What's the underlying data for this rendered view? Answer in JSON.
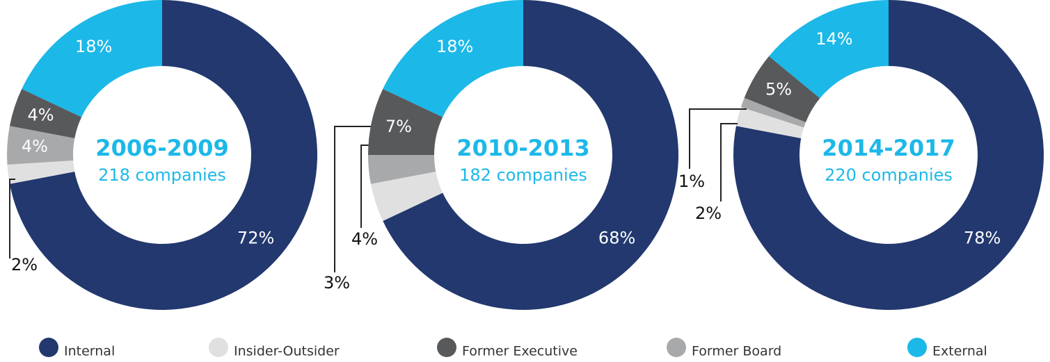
{
  "chart_data": [
    {
      "type": "pie",
      "title": "2006-2009",
      "subtitle": "218 companies",
      "categories": [
        "Internal",
        "Insider-Outsider",
        "Former Board",
        "Former Executive",
        "External"
      ],
      "values": [
        72,
        2,
        4,
        4,
        18
      ],
      "value_labels": [
        "72%",
        "2%",
        "4%",
        "4%",
        "18%"
      ]
    },
    {
      "type": "pie",
      "title": "2010-2013",
      "subtitle": "182 companies",
      "categories": [
        "Internal",
        "Insider-Outsider",
        "Former Board",
        "Former Executive",
        "External"
      ],
      "values": [
        68,
        4,
        3,
        7,
        18
      ],
      "value_labels": [
        "68%",
        "4%",
        "3%",
        "7%",
        "18%"
      ]
    },
    {
      "type": "pie",
      "title": "2014-2017",
      "subtitle": "220 companies",
      "categories": [
        "Internal",
        "Insider-Outsider",
        "Former Board",
        "Former Executive",
        "External"
      ],
      "values": [
        78,
        2,
        1,
        5,
        14
      ],
      "value_labels": [
        "78%",
        "2%",
        "1%",
        "5%",
        "14%"
      ]
    }
  ],
  "legend": [
    {
      "name": "Internal",
      "color": "#22386e"
    },
    {
      "name": "Insider-Outsider",
      "color": "#e0e0e1"
    },
    {
      "name": "Former Executive",
      "color": "#58595b"
    },
    {
      "name": "Former Board",
      "color": "#a7a9ab"
    },
    {
      "name": "External",
      "color": "#1cb8e8"
    }
  ]
}
